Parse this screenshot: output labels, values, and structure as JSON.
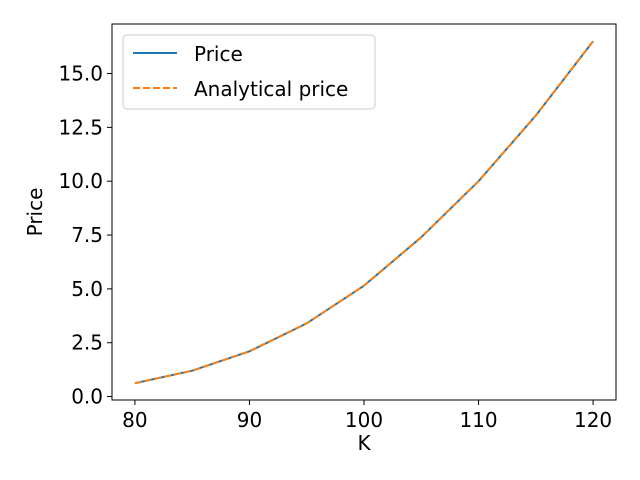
{
  "chart_data": {
    "type": "line",
    "title": "",
    "xlabel": "K",
    "ylabel": "Price",
    "x": [
      80,
      85,
      90,
      95,
      100,
      105,
      110,
      115,
      120
    ],
    "xlim": [
      78,
      122
    ],
    "ylim": [
      -0.16,
      17.3
    ],
    "xticks": [
      80,
      90,
      100,
      110,
      120
    ],
    "yticks": [
      0.0,
      2.5,
      5.0,
      7.5,
      10.0,
      12.5,
      15.0
    ],
    "xtick_labels": [
      "80",
      "90",
      "100",
      "110",
      "120"
    ],
    "ytick_labels": [
      "0.0",
      "2.5",
      "5.0",
      "7.5",
      "10.0",
      "12.5",
      "15.0"
    ],
    "grid": false,
    "legend_position": "top-left",
    "series": [
      {
        "name": "Price",
        "values": [
          0.62,
          1.2,
          2.1,
          3.4,
          5.15,
          7.4,
          10.0,
          13.05,
          16.5
        ],
        "color": "#1f77b4",
        "style": "solid"
      },
      {
        "name": "Analytical price",
        "values": [
          0.62,
          1.2,
          2.1,
          3.4,
          5.15,
          7.4,
          10.0,
          13.05,
          16.5
        ],
        "color": "#ff7f0e",
        "style": "dashed"
      }
    ]
  }
}
